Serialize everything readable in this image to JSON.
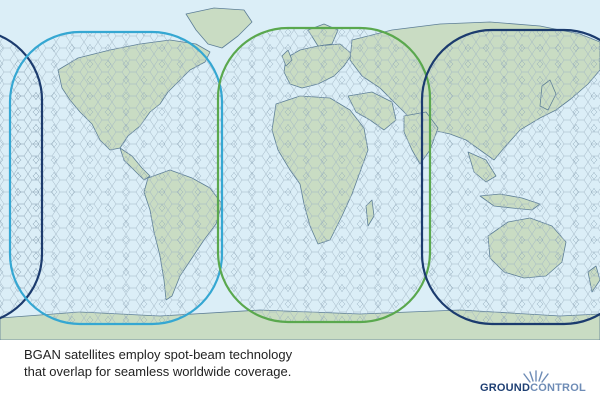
{
  "caption": {
    "line1": "BGAN satellites employ spot-beam technology",
    "line2": "that overlap for seamless worldwide coverage."
  },
  "logo": {
    "word1": "GROUND",
    "word2": "CONTROL"
  },
  "colors": {
    "ocean": "#dbeef7",
    "land": "#c9dcc3",
    "coastline": "#5d7e96",
    "beam_grid": "#8fa6b7",
    "region_atlantic_west": "#35a7d2",
    "region_emea": "#5aa84e",
    "region_pacific": "#1b3b6e",
    "logo_dark": "#1e3f73",
    "logo_light": "#6e8cb6"
  },
  "coverage_regions": [
    {
      "name": "americas-coverage",
      "color": "#35a7d2"
    },
    {
      "name": "emea-coverage",
      "color": "#5aa84e"
    },
    {
      "name": "asia-pacific-coverage",
      "color": "#1b3b6e"
    },
    {
      "name": "west-pacific-coverage",
      "color": "#1b3b6e"
    }
  ]
}
